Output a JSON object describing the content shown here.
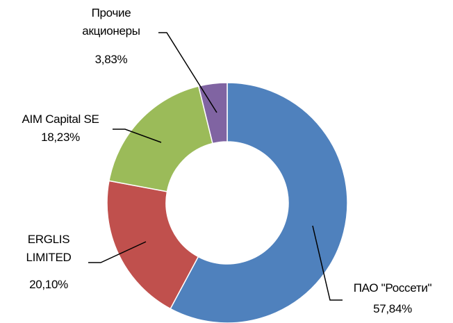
{
  "chart_data": {
    "type": "donut",
    "categories": [
      "ПАО \"Россети\"",
      "ERGLIS LIMITED",
      "AIM Capital SE",
      "Прочие акционеры"
    ],
    "values": [
      57.84,
      20.1,
      18.23,
      3.83
    ],
    "value_labels": [
      "57,84%",
      "20,10%",
      "18,23%",
      "3,83%"
    ],
    "colors": [
      "#4f81bd",
      "#c0504d",
      "#9bbb59",
      "#8064a2"
    ]
  }
}
